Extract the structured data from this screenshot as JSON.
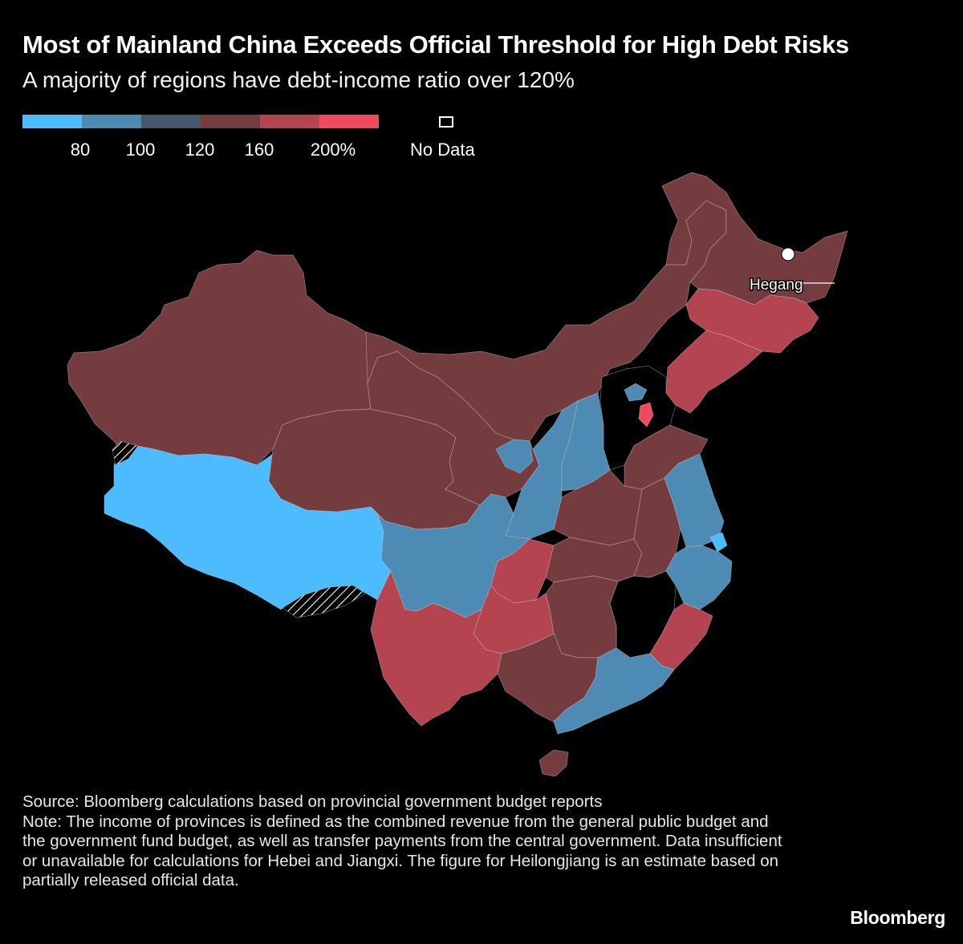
{
  "title": "Most of Mainland China Exceeds Official Threshold for High Debt Risks",
  "subtitle": "A majority of regions have debt-income ratio over 120%",
  "legend": {
    "bins": [
      {
        "color": "#4cbcff"
      },
      {
        "color": "#4d8bb5"
      },
      {
        "color": "#45576b"
      },
      {
        "color": "#753c40"
      },
      {
        "color": "#b4444f"
      },
      {
        "color": "#f24a5c"
      }
    ],
    "ticks": [
      "80",
      "100",
      "120",
      "160",
      "200%"
    ],
    "no_data_label": "No Data"
  },
  "map": {
    "city_label": "Hegang",
    "colors": {
      "under_80": "#4cbcff",
      "80_100": "#4d8bb5",
      "120_160": "#753c40",
      "160_200": "#b4444f",
      "over_200": "#f24a5c",
      "no_data": "#000000"
    }
  },
  "source": "Source: Bloomberg calculations based on provincial government budget reports",
  "note": "Note: The income of provinces is defined as the combined revenue from the general public budget and the government fund budget, as well as transfer payments from the central government. Data insufficient or unavailable for calculations for Hebei and Jiangxi. The figure for Heilongjiang is an estimate based on partially released official data.",
  "brand": "Bloomberg"
}
